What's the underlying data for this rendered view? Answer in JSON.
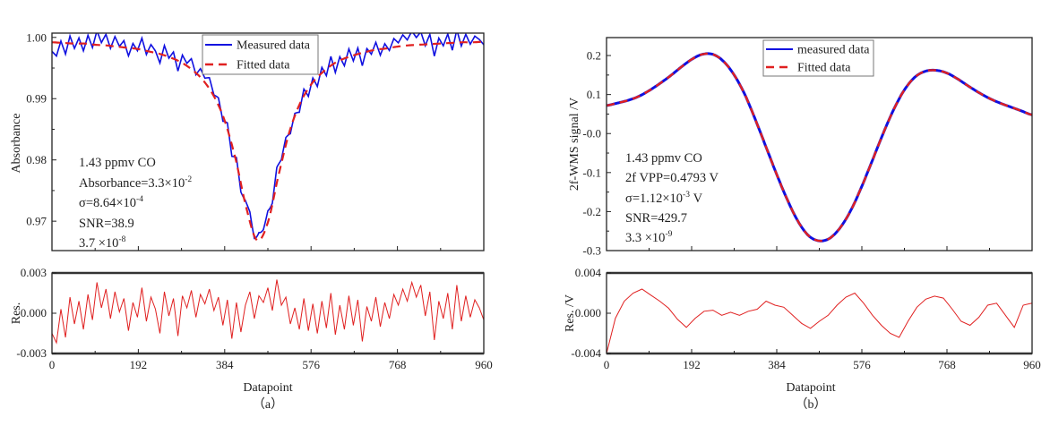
{
  "chart_data": [
    {
      "id": "a",
      "type": "line",
      "panel_label": "（a）",
      "xlabel": "Datapoint",
      "xlim": [
        0,
        960
      ],
      "xticks": [
        "0",
        "192",
        "384",
        "576",
        "768",
        "960"
      ],
      "main": {
        "ylabel": "Absorbance",
        "ylim": [
          0.9652,
          1.0007
        ],
        "yticks": [
          "1.00",
          "0.99",
          "0.98",
          "0.97"
        ],
        "ytick_values": [
          1.0,
          0.99,
          0.98,
          0.97
        ],
        "legend": {
          "position": "top-center",
          "entries": [
            "Measured data",
            "Fitted data"
          ]
        },
        "series": [
          {
            "name": "Measured data",
            "color": "#1010e0",
            "style": "solid",
            "derived": "fitted + residual"
          },
          {
            "name": "Fitted data",
            "color": "#e02020",
            "style": "dashed",
            "x_step": 24,
            "values": [
              0.9992,
              0.9991,
              0.999,
              0.999,
              0.9988,
              0.9987,
              0.9985,
              0.9983,
              0.9981,
              0.9977,
              0.9973,
              0.9967,
              0.9959,
              0.9947,
              0.993,
              0.9904,
              0.9864,
              0.9802,
              0.9722,
              0.9669,
              0.9698,
              0.9776,
              0.9846,
              0.9893,
              0.9923,
              0.9942,
              0.9956,
              0.9965,
              0.9971,
              0.9976,
              0.998,
              0.9982,
              0.9985,
              0.9987,
              0.9988,
              0.9989,
              0.999,
              0.9991,
              0.9992,
              0.9992,
              0.9993
            ]
          }
        ],
        "annotations": [
          {
            "text": "1.43 ppmv  CO",
            "sup": ""
          },
          {
            "text": "Absorbance=3.3×10",
            "sup": "-2"
          },
          {
            "text": "σ=8.64×10",
            "sup": "-4"
          },
          {
            "text": "SNR=38.9",
            "sup": ""
          },
          {
            "text": "3.7 ×10",
            "sup": "-8"
          }
        ]
      },
      "residual": {
        "ylabel": "Res.",
        "ylim": [
          -0.003,
          0.003
        ],
        "yticks": [
          "0.003",
          "0.000",
          "-0.003"
        ],
        "ytick_values": [
          0.003,
          0.0,
          -0.003
        ],
        "color": "#e02020",
        "x_step": 10,
        "values": [
          -0.0015,
          -0.0022,
          0.0003,
          -0.0018,
          0.0012,
          -0.0008,
          0.0009,
          -0.0012,
          0.0014,
          -0.0005,
          0.0023,
          0.0004,
          0.0018,
          -0.0004,
          0.0016,
          0.0001,
          0.0011,
          -0.0013,
          0.0008,
          -0.0003,
          0.0019,
          -0.0006,
          0.0012,
          0.0003,
          -0.0015,
          0.0016,
          -0.0002,
          0.0011,
          -0.0017,
          0.0013,
          0.0004,
          0.0017,
          -0.0003,
          0.0014,
          0.0007,
          0.0018,
          0.0002,
          0.0012,
          -0.0009,
          0.001,
          -0.0019,
          0.0008,
          -0.0014,
          0.0006,
          0.0016,
          -0.0004,
          0.0013,
          0.0008,
          0.0019,
          0.0002,
          0.0025,
          0.0006,
          0.0012,
          -0.0008,
          0.0004,
          -0.0012,
          0.0011,
          -0.0013,
          0.0007,
          -0.0015,
          0.0009,
          -0.0011,
          0.0015,
          -0.0016,
          0.0006,
          -0.0012,
          0.0013,
          -0.0009,
          0.001,
          -0.0021,
          0.0005,
          -0.0006,
          0.0012,
          -0.001,
          0.0008,
          -0.0004,
          0.0014,
          0.0006,
          0.0018,
          0.0009,
          0.0023,
          0.0012,
          0.0021,
          -0.0002,
          0.0016,
          -0.002,
          0.0009,
          -0.0004,
          0.0015,
          -0.0012,
          0.0021,
          -0.0006,
          0.0013,
          -0.0003,
          0.001,
          0.0004,
          -0.0005
        ]
      }
    },
    {
      "id": "b",
      "type": "line",
      "panel_label": "（b）",
      "xlabel": "Datapoint",
      "xlim": [
        0,
        960
      ],
      "xticks": [
        "0",
        "192",
        "384",
        "576",
        "768",
        "960"
      ],
      "main": {
        "ylabel": "2f-WMS signal /V",
        "ylim": [
          -0.3,
          0.246
        ],
        "yticks": [
          "0.2",
          "0.1",
          "-0.0",
          "-0.1",
          "-0.2",
          "-0.3"
        ],
        "ytick_values": [
          0.2,
          0.1,
          0.0,
          -0.1,
          -0.2,
          -0.3
        ],
        "legend": {
          "position": "top-center",
          "entries": [
            "measured data",
            "Fitted data"
          ]
        },
        "series": [
          {
            "name": "measured data",
            "color": "#1010e0",
            "style": "solid",
            "derived": "same as fitted"
          },
          {
            "name": "Fitted data",
            "color": "#e02020",
            "style": "dashed",
            "x_step": 24,
            "values": [
              0.072,
              0.078,
              0.085,
              0.095,
              0.11,
              0.128,
              0.148,
              0.17,
              0.19,
              0.203,
              0.203,
              0.185,
              0.15,
              0.1,
              0.035,
              -0.035,
              -0.105,
              -0.17,
              -0.225,
              -0.262,
              -0.275,
              -0.268,
              -0.24,
              -0.195,
              -0.135,
              -0.068,
              0.0,
              0.062,
              0.112,
              0.145,
              0.16,
              0.162,
              0.155,
              0.14,
              0.122,
              0.105,
              0.09,
              0.078,
              0.068,
              0.058,
              0.048
            ]
          }
        ],
        "annotations": [
          {
            "text": "1.43 ppmv  CO",
            "sup": "",
            "tail": ""
          },
          {
            "text": "2f VPP=0.4793 V",
            "sup": "",
            "tail": ""
          },
          {
            "text": "σ=1.12×10",
            "sup": "-3",
            "tail": " V"
          },
          {
            "text": "SNR=429.7",
            "sup": "",
            "tail": ""
          },
          {
            "text": "3.3 ×10",
            "sup": "-9",
            "tail": ""
          }
        ]
      },
      "residual": {
        "ylabel": "Res. /V",
        "ylim": [
          -0.004,
          0.004
        ],
        "yticks": [
          "0.004",
          "0.000",
          "-0.004"
        ],
        "ytick_values": [
          0.004,
          0.0,
          -0.004
        ],
        "color": "#e02020",
        "x_step": 20,
        "values": [
          -0.004,
          -0.0005,
          0.0012,
          0.002,
          0.0024,
          0.0018,
          0.0012,
          0.0005,
          -0.0006,
          -0.0014,
          -0.0005,
          0.0002,
          0.0003,
          -0.0002,
          0.0001,
          -0.0002,
          0.0002,
          0.0004,
          0.0012,
          0.0008,
          0.0006,
          -0.0002,
          -0.001,
          -0.0015,
          -0.0008,
          -0.0002,
          0.0008,
          0.0016,
          0.002,
          0.001,
          -0.0002,
          -0.0012,
          -0.002,
          -0.0024,
          -0.0008,
          0.0006,
          0.0014,
          0.0017,
          0.0015,
          0.0004,
          -0.0008,
          -0.0012,
          -0.0004,
          0.0008,
          0.001,
          -0.0002,
          -0.0014,
          0.0008,
          0.001
        ]
      }
    }
  ]
}
